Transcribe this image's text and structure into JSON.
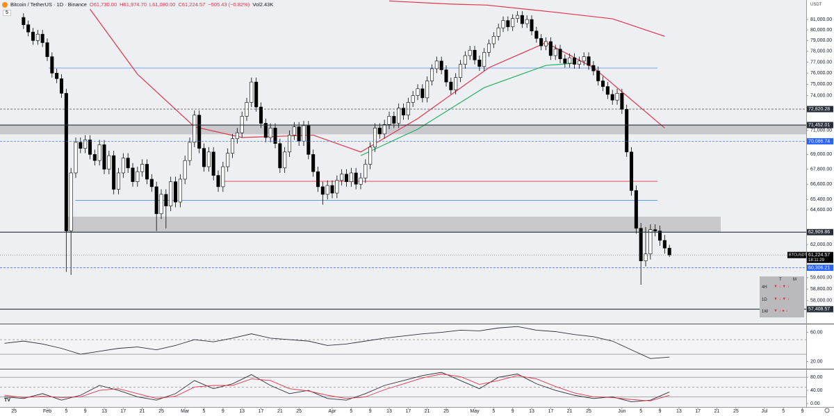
{
  "header": {
    "title": "Bitcoin / TetherUS · 1D · Binance",
    "legend_values": [
      "O61,730.00",
      "H61,974.70",
      "L61,080.00",
      "C61,224.57",
      "−505.43 (−0.82%)",
      "Vol2.43K"
    ],
    "indicator_count": "5",
    "unit": "USDT"
  },
  "signal_table": {
    "columns": [
      "T",
      "M"
    ],
    "rows": [
      "4H",
      "1D",
      "1W"
    ]
  },
  "chart_data": [
    {
      "type": "candlestick",
      "log_scale": true,
      "up_color": "#ffffff",
      "down_color": "#000000",
      "xlim": [
        -4.95,
        164.8
      ],
      "ylim": [
        56430,
        82900
      ],
      "xticks": [
        {
          "value": -2,
          "label": "25"
        },
        {
          "value": 5,
          "label": "Feb"
        },
        {
          "value": 9,
          "label": "5"
        },
        {
          "value": 13,
          "label": "9"
        },
        {
          "value": 17,
          "label": "13"
        },
        {
          "value": 21,
          "label": "17"
        },
        {
          "value": 25,
          "label": "21"
        },
        {
          "value": 29,
          "label": "25"
        },
        {
          "value": 34,
          "label": "Mar"
        },
        {
          "value": 38,
          "label": "5"
        },
        {
          "value": 42,
          "label": "9"
        },
        {
          "value": 46,
          "label": "13"
        },
        {
          "value": 50,
          "label": "17"
        },
        {
          "value": 54,
          "label": "21"
        },
        {
          "value": 58,
          "label": "25"
        },
        {
          "value": 65,
          "label": "Apr"
        },
        {
          "value": 69,
          "label": "5"
        },
        {
          "value": 73,
          "label": "9"
        },
        {
          "value": 77,
          "label": "13"
        },
        {
          "value": 81,
          "label": "17"
        },
        {
          "value": 85,
          "label": "21"
        },
        {
          "value": 89,
          "label": "25"
        },
        {
          "value": 95,
          "label": "May"
        },
        {
          "value": 99,
          "label": "5"
        },
        {
          "value": 103,
          "label": "9"
        },
        {
          "value": 107,
          "label": "13"
        },
        {
          "value": 111,
          "label": "17"
        },
        {
          "value": 115,
          "label": "21"
        },
        {
          "value": 119,
          "label": "25"
        },
        {
          "value": 126,
          "label": "Jun"
        },
        {
          "value": 130,
          "label": "5"
        },
        {
          "value": 134,
          "label": "9"
        },
        {
          "value": 138,
          "label": "13"
        },
        {
          "value": 142,
          "label": "17"
        },
        {
          "value": 146,
          "label": "21"
        },
        {
          "value": 150,
          "label": "25"
        },
        {
          "value": 156,
          "label": "Jul"
        },
        {
          "value": 160,
          "label": "5"
        },
        {
          "value": 164,
          "label": "9"
        }
      ],
      "yticks": [
        {
          "value": 81000,
          "label": "81,000.00"
        },
        {
          "value": 80000,
          "label": "80,000.00"
        },
        {
          "value": 79000,
          "label": "79,000.00"
        },
        {
          "value": 78000,
          "label": "78,000.00"
        },
        {
          "value": 77000,
          "label": "77,000.00"
        },
        {
          "value": 76000,
          "label": "76,000.00"
        },
        {
          "value": 75000,
          "label": "75,000.00"
        },
        {
          "value": 74000,
          "label": "74,000.00"
        },
        {
          "value": 71000,
          "label": "71,000.00"
        },
        {
          "value": 69000,
          "label": "69,000.00"
        },
        {
          "value": 67800,
          "label": "67,800.00"
        },
        {
          "value": 66600,
          "label": "66,600.00"
        },
        {
          "value": 65400,
          "label": "65,400.00"
        },
        {
          "value": 64600,
          "label": "64,600.00"
        },
        {
          "value": 62000,
          "label": "62,000.00"
        },
        {
          "value": 59600,
          "label": "59,600.00"
        },
        {
          "value": 58800,
          "label": "58,800.00"
        },
        {
          "value": 58000,
          "label": "58,000.00"
        }
      ],
      "open": [
        81200,
        80500,
        79800,
        79000,
        79600,
        78800,
        77500,
        76000,
        75500,
        74200,
        63000,
        67500,
        70000,
        69500,
        70200,
        69000,
        68500,
        69800,
        67800,
        68900,
        66200,
        67500,
        68700,
        67900,
        66800,
        67600,
        68200,
        67000,
        66400,
        64300,
        65800,
        64900,
        66800,
        65200,
        67000,
        68500,
        70000,
        72300,
        69500,
        68000,
        69200,
        67300,
        66400,
        68000,
        69100,
        70300,
        70800,
        72200,
        73400,
        75200,
        73000,
        71600,
        70400,
        71200,
        69900,
        67900,
        69200,
        70600,
        71300,
        70100,
        71400,
        69000,
        67600,
        66400,
        65800,
        66500,
        65900,
        66900,
        67400,
        66800,
        67500,
        66600,
        67100,
        68200,
        69600,
        71200,
        70700,
        71500,
        72200,
        71600,
        72900,
        72300,
        73400,
        74000,
        74600,
        73800,
        75300,
        76400,
        77100,
        76300,
        75200,
        74500,
        75600,
        76800,
        77600,
        78100,
        77200,
        76600,
        77900,
        78700,
        79400,
        80200,
        80900,
        80300,
        81100,
        81400,
        80600,
        81000,
        79900,
        79200,
        78500,
        78900,
        77600,
        78200,
        77300,
        76900,
        77400,
        76800,
        77100,
        77500,
        76700,
        76200,
        75300,
        74800,
        74100,
        73600,
        74200,
        72800,
        69200,
        66100,
        63200,
        60800,
        61300,
        63100,
        63000,
        62300,
        61730
      ],
      "high": [
        81600,
        80900,
        80200,
        80000,
        80000,
        79200,
        77900,
        76400,
        75900,
        74600,
        67900,
        70400,
        70400,
        70600,
        70600,
        69400,
        70200,
        70200,
        69300,
        69300,
        67900,
        69100,
        69100,
        68300,
        68000,
        68600,
        68600,
        67400,
        66800,
        66200,
        66200,
        67200,
        67200,
        67400,
        68900,
        70400,
        72700,
        72700,
        69900,
        69600,
        69600,
        67700,
        68400,
        69500,
        70700,
        71200,
        72600,
        73800,
        75600,
        75600,
        73400,
        72000,
        71600,
        71600,
        70300,
        69600,
        71000,
        71700,
        71700,
        71800,
        71800,
        69400,
        68000,
        66800,
        66900,
        66900,
        67300,
        67800,
        67800,
        67900,
        67900,
        67500,
        68600,
        70000,
        71600,
        71600,
        71900,
        72600,
        72600,
        73300,
        73300,
        73800,
        74400,
        75000,
        75000,
        75700,
        76800,
        77500,
        77500,
        76700,
        75600,
        76000,
        77200,
        78000,
        78500,
        78500,
        77600,
        78300,
        79100,
        79800,
        80600,
        81300,
        81300,
        81500,
        81800,
        81800,
        81400,
        81400,
        80300,
        79600,
        79300,
        79300,
        78600,
        78600,
        77700,
        77800,
        77800,
        77500,
        77900,
        77900,
        77100,
        76600,
        75700,
        75200,
        74500,
        74600,
        74600,
        73200,
        69600,
        66500,
        63600,
        63300,
        63500,
        63500,
        63400,
        62700,
        61974.7
      ],
      "low": [
        80100,
        79400,
        78600,
        78600,
        78400,
        77100,
        75600,
        75100,
        73800,
        60000,
        59800,
        67100,
        69100,
        69100,
        68600,
        68100,
        68100,
        67400,
        67400,
        65800,
        65800,
        67100,
        67500,
        66400,
        66400,
        67200,
        66600,
        66000,
        63000,
        63900,
        63200,
        64500,
        64800,
        64800,
        66600,
        68100,
        69600,
        69100,
        67600,
        67600,
        66900,
        66000,
        66000,
        67600,
        68700,
        69900,
        70400,
        71800,
        73000,
        72600,
        71200,
        70000,
        70000,
        69500,
        67500,
        67500,
        68800,
        70200,
        69700,
        69700,
        68600,
        67200,
        66000,
        65000,
        65400,
        65500,
        65500,
        66500,
        66400,
        66400,
        66200,
        66200,
        66700,
        67800,
        69200,
        70300,
        70300,
        71100,
        71200,
        71200,
        71900,
        71900,
        73000,
        73600,
        73400,
        73400,
        74900,
        76000,
        75900,
        74800,
        74100,
        74100,
        75200,
        76400,
        77200,
        76800,
        76200,
        76200,
        77500,
        78300,
        79000,
        79800,
        79900,
        79900,
        80700,
        80200,
        80200,
        79500,
        78800,
        78100,
        78100,
        77200,
        77200,
        76900,
        76500,
        76500,
        76400,
        76400,
        76700,
        76300,
        75800,
        74900,
        74400,
        73700,
        73200,
        73200,
        72400,
        68800,
        65700,
        62800,
        59100,
        60400,
        60900,
        62600,
        61900,
        61330,
        61080
      ],
      "close": [
        80500,
        79800,
        79000,
        79600,
        78800,
        77500,
        76000,
        75500,
        74200,
        63000,
        67500,
        70000,
        69500,
        70200,
        69000,
        68500,
        69800,
        67800,
        68900,
        66200,
        67500,
        68700,
        67900,
        66800,
        67600,
        68200,
        67000,
        66400,
        64300,
        65800,
        64900,
        66800,
        65200,
        67000,
        68500,
        70000,
        72300,
        69500,
        68000,
        69200,
        67300,
        66400,
        68000,
        69100,
        70300,
        70800,
        72200,
        73400,
        75200,
        73000,
        71600,
        70400,
        71200,
        69900,
        67900,
        69200,
        70600,
        71300,
        70100,
        71400,
        69000,
        67600,
        66400,
        65800,
        66500,
        65900,
        66900,
        67400,
        66800,
        67500,
        66600,
        67100,
        68200,
        69600,
        71200,
        70700,
        71500,
        72200,
        71600,
        72900,
        72300,
        73400,
        74000,
        74600,
        73800,
        75300,
        76400,
        77100,
        76300,
        75200,
        74500,
        75600,
        76800,
        77600,
        78100,
        77200,
        76600,
        77900,
        78700,
        79400,
        80200,
        80900,
        80300,
        81100,
        81400,
        80600,
        81000,
        79900,
        79200,
        78500,
        78900,
        77600,
        78200,
        77300,
        76900,
        77400,
        76800,
        77100,
        77500,
        76700,
        76200,
        75300,
        74800,
        74100,
        73600,
        74200,
        72800,
        69200,
        66100,
        63200,
        60800,
        61300,
        63100,
        63000,
        62300,
        61730,
        61224.57
      ],
      "overlays": [
        {
          "color": "#e2334a",
          "x": [
            77,
            90,
            97.5,
            112,
            124,
            135
          ],
          "values": [
            82800,
            82500,
            82400,
            81700,
            81070,
            79400
          ]
        },
        {
          "color": "#e2334a",
          "x": [
            14,
            24,
            36,
            46,
            61,
            71,
            83,
            98,
            110,
            120,
            135
          ],
          "values": [
            82000,
            75900,
            71300,
            70400,
            70600,
            69200,
            72000,
            76500,
            78800,
            76500,
            71200
          ]
        },
        {
          "color": "#22b060",
          "x": [
            71,
            83,
            97,
            110,
            116
          ],
          "values": [
            68900,
            71100,
            74700,
            76700,
            76900
          ]
        }
      ],
      "hlines": [
        {
          "value": 76456,
          "from": 5.3,
          "to": 133.5,
          "color": "#4a8ee8"
        },
        {
          "value": 65330,
          "from": 10.9,
          "to": 133.5,
          "color": "#4a8ee8"
        },
        {
          "value": 66830,
          "from": 42,
          "to": 133.5,
          "color": "#e2334a"
        }
      ],
      "zones": [
        {
          "low": 70670,
          "high": 71440,
          "from": -4.95,
          "to": 164.8,
          "color": "#c9c9cd"
        },
        {
          "low": 62909.86,
          "high": 64080,
          "from": 9,
          "to": 146.8,
          "color": "#c9c9cd"
        }
      ],
      "levels": [
        {
          "value": 72820.28,
          "label": "72,820.28",
          "style": "dashed",
          "color": "#2a2e39"
        },
        {
          "value": 71452.01,
          "label": "71,452.01",
          "style": "solid",
          "color": "#2a2e39"
        },
        {
          "value": 70086.74,
          "label": "70,086.74",
          "style": "dashed",
          "color": "#2962ff"
        },
        {
          "value": 62909.86,
          "label": "62,909.86",
          "style": "solid",
          "color": "#2a2e39"
        },
        {
          "value": 60306.21,
          "label": "60,306.21",
          "style": "dashed",
          "color": "#2962ff"
        },
        {
          "value": 57408.57,
          "label": "57,408.57",
          "style": "solid",
          "color": "#2a2e39"
        }
      ],
      "last_price": {
        "value": 61224.57,
        "label": "61,224.57",
        "symbol": "BTCUSDT",
        "countdown": "18:11:29"
      }
    },
    {
      "type": "line",
      "ylim": [
        10,
        71
      ],
      "yticks": [
        {
          "value": 60,
          "label": "60.00"
        },
        {
          "value": 20,
          "label": "20.00"
        }
      ],
      "levels": [
        30,
        50
      ],
      "x": [
        -4,
        0,
        4,
        8,
        12,
        16,
        20,
        24,
        28,
        32,
        36,
        40,
        44,
        48,
        52,
        56,
        60,
        64,
        68,
        72,
        76,
        80,
        84,
        88,
        92,
        96,
        100,
        104,
        108,
        112,
        116,
        120,
        124,
        128,
        132,
        136
      ],
      "series": [
        {
          "color": "#2a2e39",
          "values": [
            45,
            48,
            44,
            38,
            30,
            34,
            38,
            40,
            36,
            42,
            50,
            47,
            52,
            58,
            52,
            50,
            48,
            42,
            44,
            48,
            52,
            55,
            58,
            60,
            63,
            62,
            66,
            68,
            63,
            61,
            57,
            54,
            48,
            36,
            24,
            26
          ]
        }
      ]
    },
    {
      "type": "line",
      "ylim": [
        -10.8,
        103.8
      ],
      "yticks": [
        {
          "value": 80,
          "label": "80.00"
        },
        {
          "value": 40,
          "label": "40.00"
        },
        {
          "value": 0,
          "label": "0.00"
        }
      ],
      "levels": [
        80,
        50,
        20
      ],
      "x": [
        -4,
        0,
        4,
        8,
        12,
        16,
        20,
        24,
        28,
        32,
        36,
        40,
        44,
        48,
        52,
        56,
        60,
        64,
        68,
        72,
        76,
        80,
        84,
        88,
        92,
        96,
        100,
        104,
        108,
        112,
        116,
        120,
        124,
        128,
        132,
        136
      ],
      "series": [
        {
          "color": "#2a2e39",
          "values": [
            20,
            15,
            30,
            10,
            25,
            55,
            40,
            20,
            10,
            30,
            70,
            45,
            60,
            88,
            55,
            30,
            40,
            15,
            10,
            30,
            55,
            70,
            85,
            95,
            70,
            45,
            80,
            90,
            60,
            40,
            25,
            15,
            20,
            5,
            10,
            35
          ]
        },
        {
          "color": "#e2334a",
          "values": [
            25,
            18,
            22,
            18,
            20,
            40,
            45,
            30,
            15,
            22,
            50,
            55,
            55,
            75,
            70,
            45,
            38,
            25,
            15,
            20,
            42,
            60,
            78,
            90,
            82,
            58,
            70,
            85,
            75,
            52,
            32,
            20,
            18,
            12,
            8,
            25
          ]
        }
      ]
    }
  ]
}
